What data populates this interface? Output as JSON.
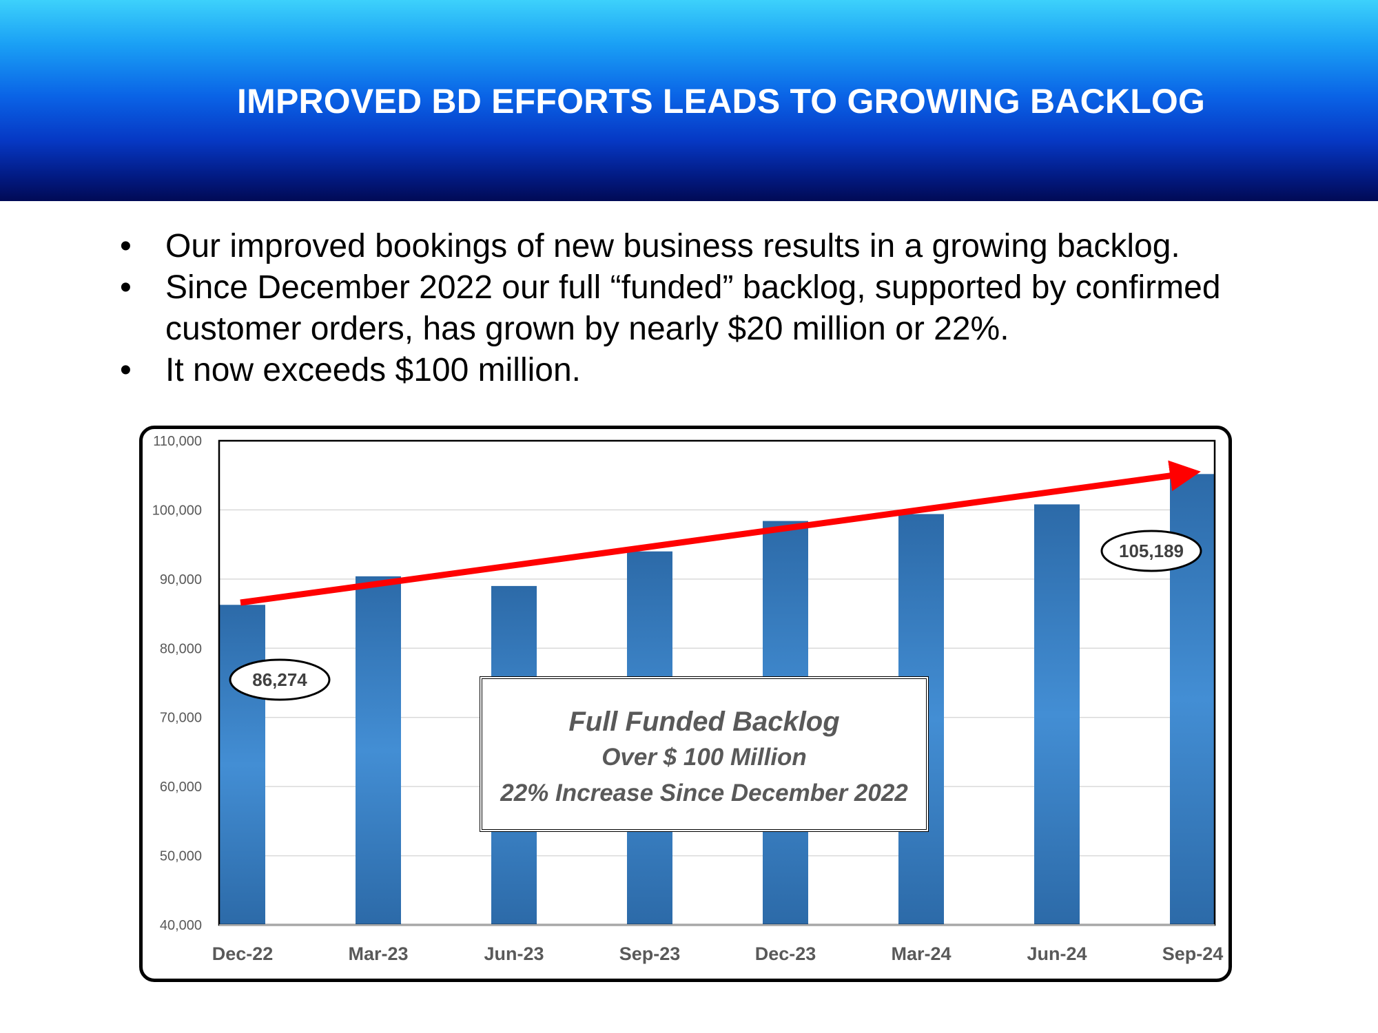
{
  "header": {
    "title": "IMPROVED BD EFFORTS LEADS TO GROWING BACKLOG"
  },
  "bullets": [
    "Our improved bookings of new business results in a growing backlog.",
    "Since December 2022 our full “funded” backlog, supported by confirmed customer orders, has grown by nearly $20 million or 22%.",
    "It now exceeds $100 million."
  ],
  "bullet_symbol": "•",
  "annotation": {
    "line1": "Full Funded Backlog",
    "line2": "Over $ 100 Million",
    "line3": "22% Increase Since December 2022"
  },
  "chart_data": {
    "type": "bar",
    "title": "",
    "xlabel": "",
    "ylabel": "",
    "categories": [
      "Dec-22",
      "Mar-23",
      "Jun-23",
      "Sep-23",
      "Dec-23",
      "Mar-24",
      "Jun-24",
      "Sep-24"
    ],
    "values": [
      86274,
      90400,
      89000,
      94000,
      98400,
      99400,
      100800,
      105189
    ],
    "ylim": [
      40000,
      110000
    ],
    "yticks": [
      40000,
      50000,
      60000,
      70000,
      80000,
      90000,
      100000,
      110000
    ],
    "ytick_labels": [
      "40,000",
      "50,000",
      "60,000",
      "70,000",
      "80,000",
      "90,000",
      "100,000",
      "110,000"
    ],
    "grid": true,
    "callouts": [
      {
        "category": "Dec-22",
        "label": "86,274"
      },
      {
        "category": "Sep-24",
        "label": "105,189"
      }
    ],
    "trend_arrow": {
      "from_value": 86800,
      "to_value": 105300,
      "color": "#ff0000"
    },
    "bar_color": "#2e75b6"
  }
}
